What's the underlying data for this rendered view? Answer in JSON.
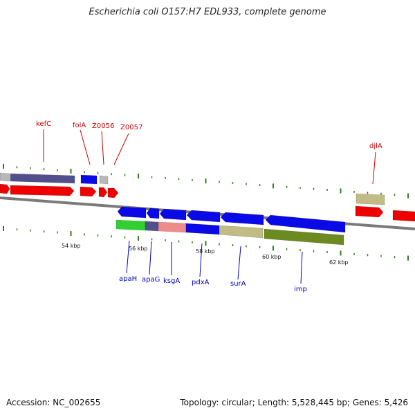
{
  "title": "Escherichia coli O157:H7 EDL933, complete genome",
  "footer": {
    "accession": "Accession: NC_002655",
    "summary": "Topology: circular; Length: 5,528,445 bp; Genes: 5,426"
  },
  "colors": {
    "backbone": "#7a7a7a",
    "tick": "#2f7d17",
    "upper_label": "#cc0000",
    "lower_label": "#0000bb",
    "cds_red": "#ee0000",
    "blue": "#0a0ae6",
    "navy": "#52508c",
    "gray": "#b8b8b8",
    "khaki": "#c2bb84",
    "olive": "#6b8a1f",
    "green": "#2fd02f",
    "pink": "#ee8c8c"
  },
  "scale_labels": [
    "54 kbp",
    "56 kbp",
    "58 kbp",
    "60 kbp",
    "62 kbp"
  ],
  "upper_labels": [
    "kefC",
    "folA",
    "Z0056",
    "Z0057",
    "djlA"
  ],
  "lower_labels": [
    "apaH",
    "apaG",
    "ksgA",
    "pdxA",
    "surA",
    "imp"
  ]
}
